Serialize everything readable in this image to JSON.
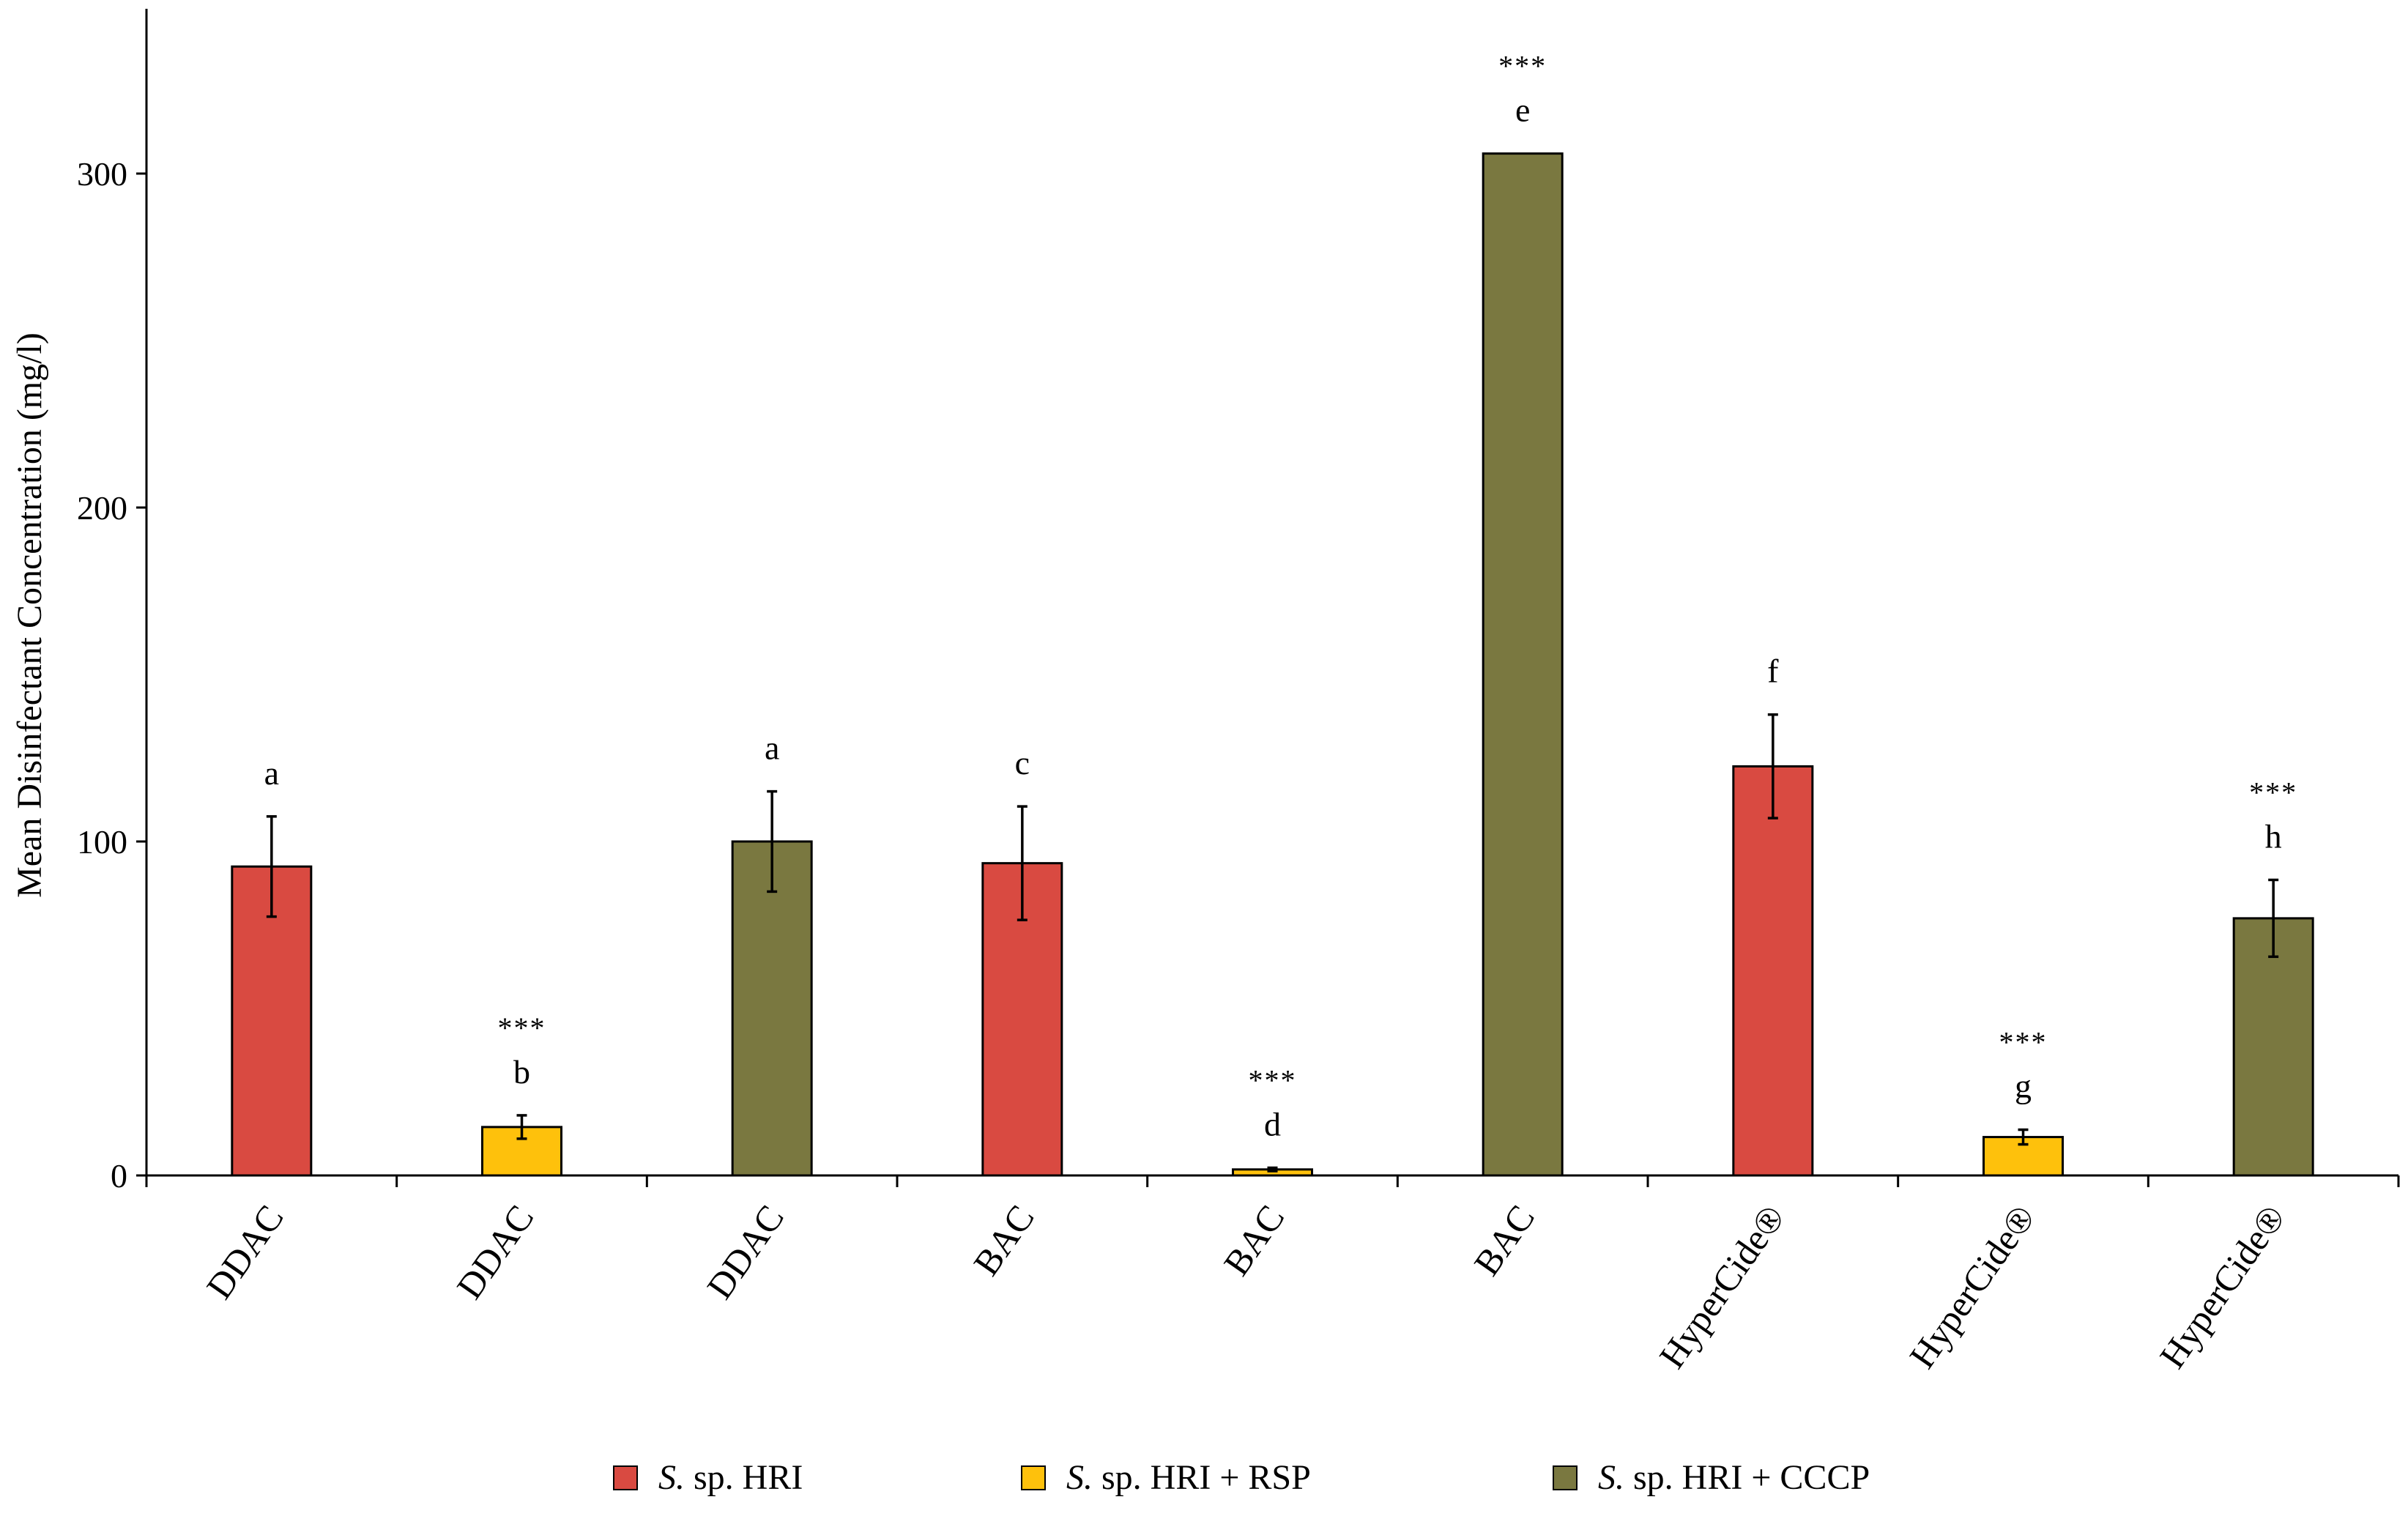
{
  "chart_data": {
    "type": "bar",
    "title": "",
    "xlabel": "",
    "ylabel": "Mean Disinfectant Concentration (mg/l)",
    "ylim": [
      0,
      350
    ],
    "yticks": [
      0,
      100,
      200,
      300
    ],
    "grid": false,
    "legend_position": "bottom-center",
    "series": [
      {
        "name": "S. sp.  HRI",
        "name_italic": "S.",
        "name_rest": " sp.  HRI",
        "color": "#d94a41"
      },
      {
        "name": "S. sp.  HRI + RSP",
        "name_italic": "S.",
        "name_rest": " sp.  HRI + RSP",
        "color": "#fec10c"
      },
      {
        "name": "S. sp.  HRI + CCCP",
        "name_italic": "S.",
        "name_rest": " sp.  HRI + CCCP",
        "color": "#7a7840"
      }
    ],
    "bars": [
      {
        "category": "DDAC",
        "series": 0,
        "value": 92.5,
        "error": 15,
        "letter": "a",
        "sig": ""
      },
      {
        "category": "DDAC",
        "series": 1,
        "value": 14.5,
        "error": 3.5,
        "letter": "b",
        "sig": "***"
      },
      {
        "category": "DDAC",
        "series": 2,
        "value": 100,
        "error": 15,
        "letter": "a",
        "sig": ""
      },
      {
        "category": "BAC",
        "series": 0,
        "value": 93.5,
        "error": 17,
        "letter": "c",
        "sig": ""
      },
      {
        "category": "BAC",
        "series": 1,
        "value": 1.8,
        "error": 0.5,
        "letter": "d",
        "sig": "***"
      },
      {
        "category": "BAC",
        "series": 2,
        "value": 306,
        "error": 0,
        "letter": "e",
        "sig": "***"
      },
      {
        "category": "HyperCide®",
        "series": 0,
        "value": 122.5,
        "error": 15.5,
        "letter": "f",
        "sig": ""
      },
      {
        "category": "HyperCide®",
        "series": 1,
        "value": 11.5,
        "error": 2.2,
        "letter": "g",
        "sig": "***"
      },
      {
        "category": "HyperCide®",
        "series": 2,
        "value": 77,
        "error": 11.5,
        "letter": "h",
        "sig": "***"
      }
    ]
  }
}
